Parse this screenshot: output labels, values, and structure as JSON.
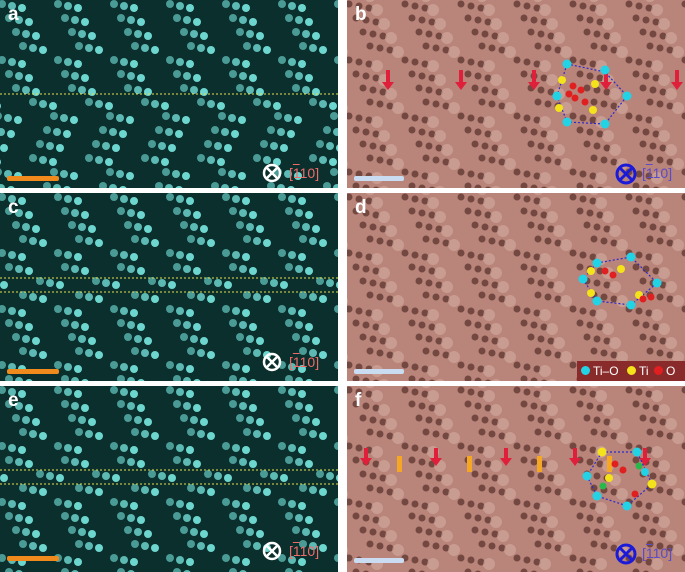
{
  "panels": [
    {
      "label": "a",
      "direction": "[110]",
      "direction_bar": "1",
      "view": "into-page"
    },
    {
      "label": "b",
      "direction": "[110]",
      "direction_bar": "1",
      "view": "into-page"
    },
    {
      "label": "c",
      "direction": "[110]",
      "direction_bar": "1",
      "view": "into-page"
    },
    {
      "label": "d"
    },
    {
      "label": "e",
      "direction": "[110]",
      "direction_bar": "1",
      "view": "into-page"
    },
    {
      "label": "f",
      "direction": "[110]",
      "direction_bar": "1",
      "view": "into-page"
    }
  ],
  "legend": {
    "items": [
      {
        "label": "Ti–O",
        "color": "#22d3e6"
      },
      {
        "label": "Ti",
        "color": "#f4e21a"
      },
      {
        "label": "O",
        "color": "#e02020"
      }
    ]
  },
  "colors": {
    "haadf_bg": "#0b2f2c",
    "haadf_atom": "#7ff3ec",
    "abf_bg": "#b9847a",
    "abf_atom": "#3a1712",
    "scalebar_orange": "#f08a1c",
    "scalebar_blue": "#c9dcf2",
    "arrow_red": "#e0203a",
    "arrow_orange": "#f5a623"
  }
}
